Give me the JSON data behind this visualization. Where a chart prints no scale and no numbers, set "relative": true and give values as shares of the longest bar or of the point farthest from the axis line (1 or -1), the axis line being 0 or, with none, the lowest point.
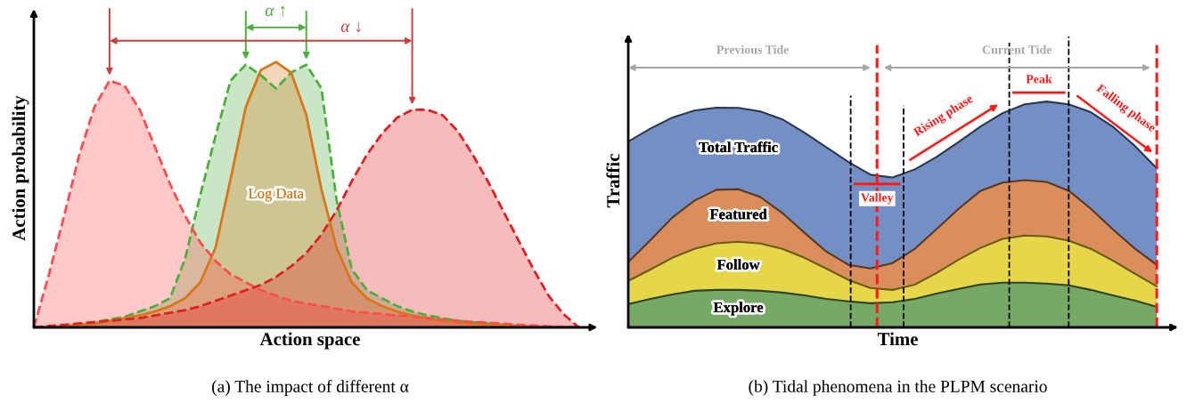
{
  "chart_data": [
    {
      "type": "area",
      "relative": true,
      "xlabel": "Action space",
      "ylabel": "Action probability",
      "title": "(a) The impact of different α",
      "categories": [
        null,
        null,
        null,
        null,
        null,
        null,
        null,
        null,
        null,
        null,
        null,
        null,
        null,
        null,
        null,
        null,
        null,
        null,
        null,
        null,
        null,
        null,
        null,
        null,
        null,
        null,
        null,
        null,
        null,
        null,
        null,
        null,
        null,
        null,
        null,
        null,
        null
      ],
      "series": [
        {
          "color": "#4caf3c",
          "line_style": "dashed",
          "values": [
            0,
            0,
            0.005,
            0.01,
            0.02,
            0.03,
            0.04,
            0.06,
            0.08,
            0.11,
            0.26,
            0.5,
            0.72,
            0.93,
            0.99,
            0.95,
            0.9,
            0.96,
            0.99,
            0.9,
            0.48,
            0.22,
            0.14,
            0.11,
            0.08,
            0.06,
            0.045,
            0.035,
            0.025,
            0.02,
            0.015,
            0.01,
            0.005,
            0,
            0,
            0,
            0
          ]
        },
        {
          "name": "Log Data",
          "color": "#d9761b",
          "line_style": "solid",
          "values": [
            0,
            0,
            0.005,
            0.01,
            0.015,
            0.025,
            0.035,
            0.045,
            0.06,
            0.08,
            0.11,
            0.17,
            0.3,
            0.56,
            0.83,
            0.97,
            1,
            0.96,
            0.8,
            0.52,
            0.3,
            0.17,
            0.11,
            0.08,
            0.06,
            0.045,
            0.035,
            0.025,
            0.02,
            0.015,
            0.01,
            0.008,
            0.005,
            0.003,
            0,
            0,
            0
          ]
        },
        {
          "color": "#ff4d4d",
          "line_style": "dashed",
          "values": [
            0,
            0.2,
            0.42,
            0.65,
            0.83,
            0.93,
            0.91,
            0.82,
            0.68,
            0.54,
            0.42,
            0.32,
            0.25,
            0.2,
            0.17,
            0.14,
            0.12,
            0.1,
            0.09,
            0.08,
            0.07,
            0.06,
            0.055,
            0.05,
            0.045,
            0.04,
            0.035,
            0.03,
            0.025,
            0.02,
            0.018,
            0.014,
            0.01,
            0.007,
            0.004,
            0.002,
            0
          ]
        },
        {
          "color": "#e01f1f",
          "line_style": "dashed",
          "values": [
            0,
            0.005,
            0.01,
            0.015,
            0.02,
            0.025,
            0.03,
            0.035,
            0.045,
            0.055,
            0.065,
            0.08,
            0.1,
            0.12,
            0.14,
            0.16,
            0.19,
            0.23,
            0.28,
            0.35,
            0.44,
            0.55,
            0.65,
            0.73,
            0.79,
            0.82,
            0.82,
            0.8,
            0.74,
            0.65,
            0.55,
            0.44,
            0.33,
            0.22,
            0.12,
            0.05,
            0
          ]
        }
      ],
      "annotations": [
        "α ↑",
        "α ↓"
      ]
    },
    {
      "type": "area",
      "relative": true,
      "stacked": true,
      "xlabel": "Time",
      "ylabel": "Traffic",
      "title": "(b) Tidal phenomena in the PLPM scenario",
      "categories": [
        null,
        null,
        null,
        null,
        null,
        null,
        null,
        null,
        null,
        null,
        null,
        null,
        null,
        null,
        null,
        null,
        null,
        null,
        null,
        null,
        null,
        null,
        null,
        null,
        null
      ],
      "series": [
        {
          "name": "Explore",
          "color": "#5e9a4a",
          "values": [
            0.103,
            0.126,
            0.146,
            0.162,
            0.166,
            0.166,
            0.162,
            0.154,
            0.142,
            0.126,
            0.115,
            0.107,
            0.111,
            0.126,
            0.15,
            0.17,
            0.19,
            0.198,
            0.198,
            0.194,
            0.186,
            0.166,
            0.142,
            0.119,
            0.091
          ]
        },
        {
          "name": "Follow",
          "color": "#e3cf2a",
          "values": [
            0.103,
            0.13,
            0.162,
            0.186,
            0.206,
            0.213,
            0.209,
            0.194,
            0.166,
            0.134,
            0.095,
            0.067,
            0.055,
            0.063,
            0.091,
            0.13,
            0.162,
            0.194,
            0.209,
            0.209,
            0.198,
            0.182,
            0.154,
            0.119,
            0.091
          ]
        },
        {
          "name": "Featured",
          "color": "#d27a3f",
          "values": [
            0.083,
            0.13,
            0.178,
            0.213,
            0.237,
            0.233,
            0.206,
            0.158,
            0.111,
            0.075,
            0.067,
            0.087,
            0.119,
            0.158,
            0.194,
            0.225,
            0.253,
            0.249,
            0.245,
            0.241,
            0.221,
            0.178,
            0.138,
            0.111,
            0.095
          ]
        },
        {
          "name": "Total Traffic",
          "color": "#5a7bb8",
          "values": [
            0.534,
            0.494,
            0.443,
            0.399,
            0.364,
            0.36,
            0.379,
            0.415,
            0.443,
            0.462,
            0.455,
            0.415,
            0.379,
            0.352,
            0.32,
            0.296,
            0.285,
            0.308,
            0.336,
            0.356,
            0.383,
            0.427,
            0.455,
            0.455,
            0.427
          ]
        }
      ],
      "annotations": [
        "Previous Tide",
        "Current Tide",
        "Valley",
        "Peak",
        "Rising phase",
        "Falling phase"
      ]
    }
  ]
}
